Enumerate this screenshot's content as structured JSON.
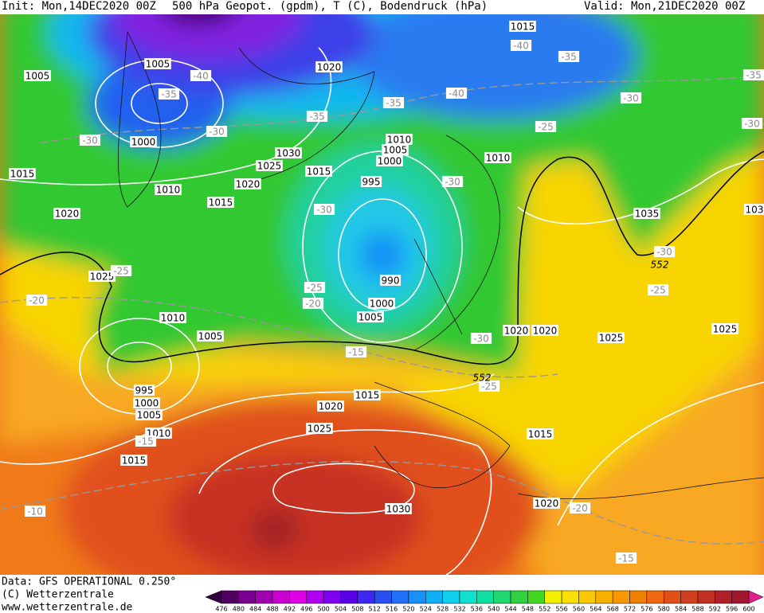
{
  "header": {
    "init": "Init: Mon,14DEC2020 00Z",
    "title": "500 hPa Geopot. (gpdm), T (C), Bodendruck (hPa)",
    "valid": "Valid: Mon,21DEC2020 00Z"
  },
  "map": {
    "isobar_labels": [
      "1015",
      "1005",
      "1005",
      "1020",
      "1000",
      "1030",
      "1025",
      "1015",
      "1010",
      "1005",
      "1000",
      "1010",
      "1015",
      "1010",
      "1020",
      "995",
      "1015",
      "1020",
      "1035",
      "1025",
      "990",
      "1000",
      "1005",
      "1010",
      "1005",
      "1020",
      "1020",
      "1025",
      "1025",
      "995",
      "1000",
      "1005",
      "1015",
      "1020",
      "1010",
      "1025",
      "1015",
      "1015",
      "1030",
      "1020",
      "103"
    ],
    "temperature_labels": [
      "-40",
      "-35",
      "-40",
      "-35",
      "-40",
      "-35",
      "-30",
      "-35",
      "-30",
      "-35",
      "-30",
      "-30",
      "-25",
      "-30",
      "-30",
      "-30",
      "-25",
      "-25",
      "-25",
      "-20",
      "-20",
      "-30",
      "-15",
      "-25",
      "-15",
      "-20",
      "-10",
      "-15"
    ],
    "contour_labels": [
      "552",
      "552"
    ]
  },
  "colorbar": {
    "ticks": [
      476,
      480,
      484,
      488,
      492,
      496,
      500,
      504,
      508,
      512,
      516,
      520,
      524,
      528,
      532,
      536,
      540,
      544,
      548,
      552,
      556,
      560,
      564,
      568,
      572,
      576,
      580,
      584,
      588,
      592,
      596,
      600
    ],
    "colors": [
      "#300040",
      "#500060",
      "#7a0090",
      "#a000b0",
      "#c800d0",
      "#e000e8",
      "#b000f0",
      "#8000f0",
      "#5a00e8",
      "#3c28f0",
      "#2850f0",
      "#2070f8",
      "#1890f8",
      "#10b0f8",
      "#10d0f0",
      "#10e0d0",
      "#10e0a0",
      "#20d870",
      "#30d040",
      "#40d820",
      "#f0f000",
      "#f8e000",
      "#f8c800",
      "#f8b000",
      "#f89800",
      "#f08000",
      "#f06810",
      "#e05018",
      "#d04020",
      "#c03020",
      "#b02028",
      "#a01830",
      "#e0208c"
    ]
  },
  "footer": {
    "source": "Data: GFS OPERATIONAL 0.250°",
    "copyright": "(C) Wetterzentrale",
    "url": "www.wetterzentrale.de"
  }
}
